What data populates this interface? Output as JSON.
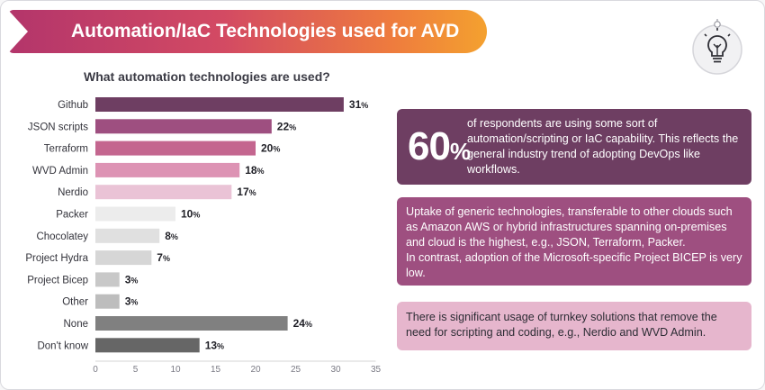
{
  "header": {
    "title": "Automation/IaC Technologies used for AVD"
  },
  "icons": {
    "badge": "lightbulb-icon"
  },
  "colors": {
    "banner_start": "#b3356b",
    "banner_end": "#f4a12f",
    "callout_1": "#6e3e62",
    "callout_2": "#9e4f80",
    "callout_3": "#e6b6cd"
  },
  "chart_data": {
    "type": "bar",
    "orientation": "horizontal",
    "title": "What automation technologies are used?",
    "categories": [
      "Github",
      "JSON scripts",
      "Terraform",
      "WVD Admin",
      "Nerdio",
      "Packer",
      "Chocolatey",
      "Project Hydra",
      "Project Bicep",
      "Other",
      "None",
      "Don't know"
    ],
    "values": [
      31,
      22,
      20,
      18,
      17,
      10,
      8,
      7,
      3,
      3,
      24,
      13
    ],
    "value_unit": "%",
    "bar_colors": [
      "#6e3e62",
      "#9e4f80",
      "#c4668f",
      "#dd93b4",
      "#eac3d6",
      "#ececec",
      "#e0e0e0",
      "#d6d6d6",
      "#c8c8c8",
      "#bdbdbd",
      "#808080",
      "#666666"
    ],
    "xlim": [
      0,
      35
    ],
    "xticks": [
      "0",
      "5",
      "10",
      "15",
      "20",
      "25",
      "30",
      "35"
    ],
    "xlabel": "",
    "ylabel": "",
    "grid": false,
    "legend": "none"
  },
  "callouts": [
    {
      "stat": "60",
      "stat_unit": "%",
      "text": "of respondents are using some sort of automation/scripting or IaC capability. This reflects the general industry trend of adopting DevOps like workflows."
    },
    {
      "text": "Uptake of generic technologies, transferable to other clouds such as Amazon AWS or hybrid infrastructures spanning on-premises and cloud is the highest, e.g., JSON, Terraform, Packer.",
      "text_2": "In contrast, adoption of the Microsoft-specific Project BICEP is very low."
    },
    {
      "text": "There is significant usage of turnkey solutions that remove the need for scripting and coding, e.g., Nerdio and WVD Admin."
    }
  ]
}
